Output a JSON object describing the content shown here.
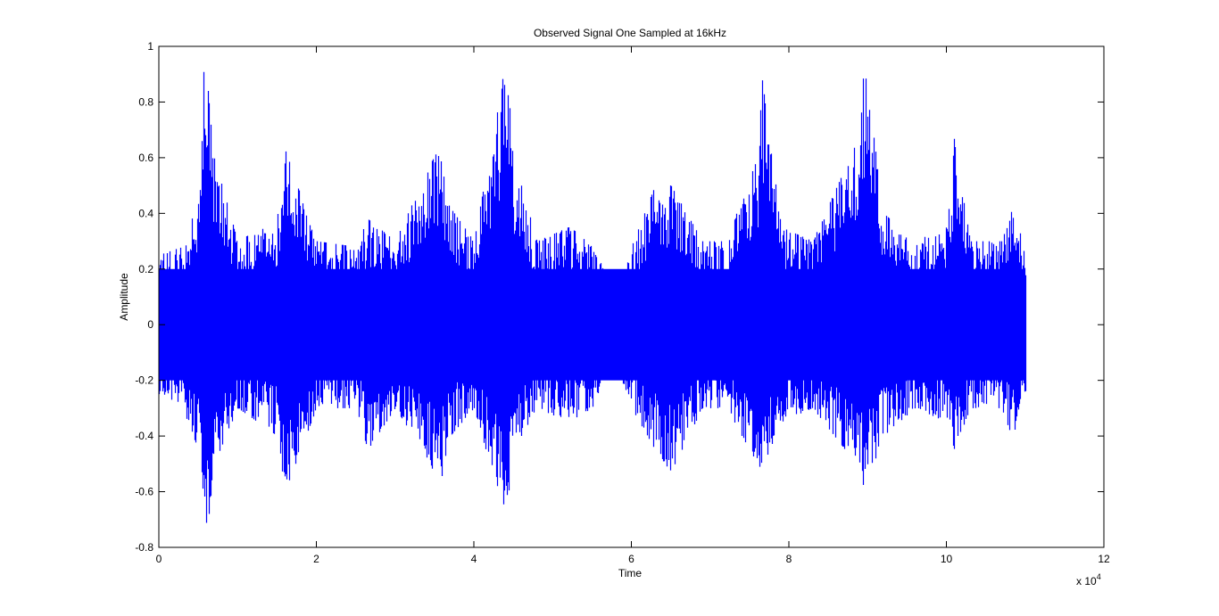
{
  "chart_data": {
    "type": "line",
    "title": "Observed Signal One Sampled at 16kHz",
    "xlabel": "Time",
    "ylabel": "Amplitude",
    "x_exponent_label": "x 10",
    "x_exponent_power": "4",
    "xlim": [
      0,
      12
    ],
    "ylim": [
      -0.8,
      1
    ],
    "xticks": [
      0,
      2,
      4,
      6,
      8,
      10,
      12
    ],
    "xtick_labels": [
      "0",
      "2",
      "4",
      "6",
      "8",
      "10",
      "12"
    ],
    "yticks": [
      -0.8,
      -0.6,
      -0.4,
      -0.2,
      0,
      0.2,
      0.4,
      0.6,
      0.8,
      1
    ],
    "ytick_labels": [
      "-0.8",
      "-0.6",
      "-0.4",
      "-0.2",
      "0",
      "0.2",
      "0.4",
      "0.6",
      "0.8",
      "1"
    ],
    "x_scale_note": "x values in units of 10^4 samples",
    "grid": false,
    "series": [
      {
        "color": "#0000ff",
        "x_end": 11.0,
        "envelope": {
          "x": [
            0.0,
            0.3,
            0.5,
            0.58,
            0.62,
            0.7,
            1.0,
            1.5,
            1.6,
            2.0,
            2.5,
            2.65,
            3.0,
            3.45,
            3.55,
            3.7,
            4.0,
            4.35,
            4.4,
            4.5,
            4.8,
            5.2,
            5.5,
            5.75,
            6.0,
            6.3,
            6.5,
            6.9,
            7.2,
            7.6,
            7.65,
            7.9,
            8.3,
            8.85,
            8.95,
            9.2,
            9.6,
            10.0,
            10.1,
            10.3,
            10.7,
            10.85,
            11.0
          ],
          "upper": [
            0.25,
            0.28,
            0.45,
            1.0,
            0.85,
            0.6,
            0.3,
            0.38,
            0.63,
            0.3,
            0.28,
            0.38,
            0.3,
            0.58,
            0.63,
            0.42,
            0.3,
            0.85,
            0.98,
            0.6,
            0.3,
            0.35,
            0.3,
            0.12,
            0.28,
            0.5,
            0.5,
            0.3,
            0.3,
            0.6,
            0.9,
            0.35,
            0.3,
            0.65,
            0.95,
            0.4,
            0.3,
            0.35,
            0.68,
            0.3,
            0.3,
            0.43,
            0.25
          ],
          "lower": [
            -0.25,
            -0.3,
            -0.45,
            -0.75,
            -0.72,
            -0.5,
            -0.3,
            -0.4,
            -0.6,
            -0.3,
            -0.3,
            -0.45,
            -0.3,
            -0.5,
            -0.6,
            -0.4,
            -0.3,
            -0.65,
            -0.7,
            -0.45,
            -0.3,
            -0.35,
            -0.3,
            -0.12,
            -0.3,
            -0.45,
            -0.53,
            -0.3,
            -0.3,
            -0.5,
            -0.52,
            -0.35,
            -0.3,
            -0.5,
            -0.6,
            -0.4,
            -0.3,
            -0.35,
            -0.45,
            -0.3,
            -0.3,
            -0.42,
            -0.25
          ]
        }
      }
    ]
  }
}
